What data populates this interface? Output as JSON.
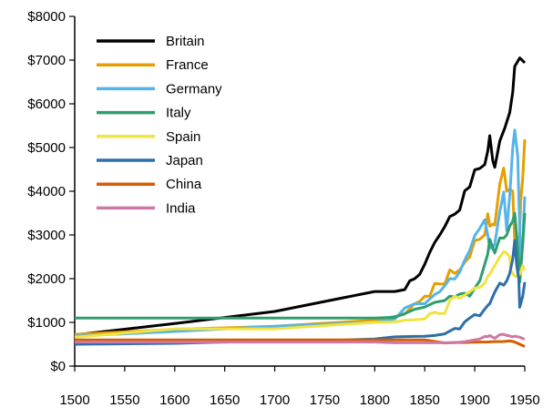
{
  "chart_data": {
    "type": "line",
    "title": "",
    "xlabel": "",
    "ylabel": "",
    "xlim": [
      1500,
      1950
    ],
    "ylim": [
      0,
      8000
    ],
    "x_ticks": [
      "1500",
      "1550",
      "1600",
      "1650",
      "1700",
      "1750",
      "1800",
      "1850",
      "1900",
      "1950"
    ],
    "y_ticks": [
      "$0",
      "$1000",
      "$2000",
      "$3000",
      "$4000",
      "$5000",
      "$6000",
      "$7000",
      "$8000"
    ],
    "legend_position": "top-left",
    "series": [
      {
        "name": "Britain",
        "color": "#000000",
        "points": [
          [
            1500,
            714
          ],
          [
            1600,
            974
          ],
          [
            1700,
            1250
          ],
          [
            1800,
            1706
          ],
          [
            1820,
            1706
          ],
          [
            1830,
            1749
          ],
          [
            1835,
            1950
          ],
          [
            1840,
            2000
          ],
          [
            1845,
            2100
          ],
          [
            1850,
            2330
          ],
          [
            1855,
            2600
          ],
          [
            1860,
            2830
          ],
          [
            1865,
            3000
          ],
          [
            1870,
            3190
          ],
          [
            1875,
            3420
          ],
          [
            1880,
            3477
          ],
          [
            1885,
            3570
          ],
          [
            1890,
            4009
          ],
          [
            1895,
            4100
          ],
          [
            1900,
            4492
          ],
          [
            1905,
            4520
          ],
          [
            1910,
            4611
          ],
          [
            1913,
            4921
          ],
          [
            1915,
            5270
          ],
          [
            1918,
            4700
          ],
          [
            1920,
            4548
          ],
          [
            1925,
            5150
          ],
          [
            1930,
            5441
          ],
          [
            1935,
            5800
          ],
          [
            1938,
            6266
          ],
          [
            1940,
            6856
          ],
          [
            1945,
            7050
          ],
          [
            1950,
            6939
          ]
        ]
      },
      {
        "name": "France",
        "color": "#E69F00",
        "points": [
          [
            1500,
            727
          ],
          [
            1600,
            841
          ],
          [
            1700,
            910
          ],
          [
            1800,
            1050
          ],
          [
            1820,
            1135
          ],
          [
            1830,
            1191
          ],
          [
            1840,
            1428
          ],
          [
            1845,
            1480
          ],
          [
            1850,
            1597
          ],
          [
            1855,
            1600
          ],
          [
            1860,
            1892
          ],
          [
            1865,
            1880
          ],
          [
            1870,
            1876
          ],
          [
            1875,
            2200
          ],
          [
            1880,
            2120
          ],
          [
            1885,
            2200
          ],
          [
            1890,
            2376
          ],
          [
            1895,
            2500
          ],
          [
            1900,
            2876
          ],
          [
            1905,
            2900
          ],
          [
            1910,
            3000
          ],
          [
            1913,
            3485
          ],
          [
            1915,
            3200
          ],
          [
            1918,
            3250
          ],
          [
            1920,
            3227
          ],
          [
            1925,
            4166
          ],
          [
            1929,
            4532
          ],
          [
            1932,
            4000
          ],
          [
            1935,
            4050
          ],
          [
            1938,
            4000
          ],
          [
            1940,
            2850
          ],
          [
            1942,
            2600
          ],
          [
            1944,
            2400
          ],
          [
            1946,
            3800
          ],
          [
            1948,
            4300
          ],
          [
            1950,
            5186
          ]
        ]
      },
      {
        "name": "Germany",
        "color": "#56B4E9",
        "points": [
          [
            1500,
            688
          ],
          [
            1600,
            791
          ],
          [
            1700,
            910
          ],
          [
            1800,
            1000
          ],
          [
            1820,
            1077
          ],
          [
            1830,
            1328
          ],
          [
            1840,
            1428
          ],
          [
            1850,
            1428
          ],
          [
            1860,
            1639
          ],
          [
            1865,
            1700
          ],
          [
            1870,
            1839
          ],
          [
            1875,
            2000
          ],
          [
            1880,
            1991
          ],
          [
            1885,
            2150
          ],
          [
            1890,
            2428
          ],
          [
            1895,
            2650
          ],
          [
            1900,
            2985
          ],
          [
            1905,
            3150
          ],
          [
            1910,
            3348
          ],
          [
            1913,
            3000
          ],
          [
            1915,
            2700
          ],
          [
            1918,
            2700
          ],
          [
            1920,
            2796
          ],
          [
            1925,
            3532
          ],
          [
            1929,
            3981
          ],
          [
            1932,
            3100
          ],
          [
            1935,
            3900
          ],
          [
            1938,
            4994
          ],
          [
            1940,
            5403
          ],
          [
            1943,
            4800
          ],
          [
            1946,
            2217
          ],
          [
            1948,
            2900
          ],
          [
            1950,
            3881
          ]
        ]
      },
      {
        "name": "Italy",
        "color": "#2E9E6E",
        "points": [
          [
            1500,
            1100
          ],
          [
            1600,
            1100
          ],
          [
            1700,
            1100
          ],
          [
            1800,
            1100
          ],
          [
            1820,
            1117
          ],
          [
            1830,
            1200
          ],
          [
            1840,
            1300
          ],
          [
            1850,
            1350
          ],
          [
            1860,
            1459
          ],
          [
            1870,
            1499
          ],
          [
            1875,
            1600
          ],
          [
            1880,
            1581
          ],
          [
            1885,
            1650
          ],
          [
            1890,
            1667
          ],
          [
            1895,
            1600
          ],
          [
            1900,
            1785
          ],
          [
            1905,
            1950
          ],
          [
            1910,
            2332
          ],
          [
            1913,
            2564
          ],
          [
            1915,
            2900
          ],
          [
            1918,
            2700
          ],
          [
            1920,
            2587
          ],
          [
            1925,
            2933
          ],
          [
            1929,
            2927
          ],
          [
            1932,
            3000
          ],
          [
            1935,
            3200
          ],
          [
            1938,
            3316
          ],
          [
            1940,
            3500
          ],
          [
            1943,
            2700
          ],
          [
            1945,
            1922
          ],
          [
            1948,
            2800
          ],
          [
            1950,
            3502
          ]
        ]
      },
      {
        "name": "Spain",
        "color": "#F0E442",
        "points": [
          [
            1500,
            661
          ],
          [
            1600,
            853
          ],
          [
            1700,
            853
          ],
          [
            1800,
            1000
          ],
          [
            1820,
            1008
          ],
          [
            1830,
            1050
          ],
          [
            1840,
            1060
          ],
          [
            1850,
            1079
          ],
          [
            1855,
            1200
          ],
          [
            1860,
            1230
          ],
          [
            1865,
            1200
          ],
          [
            1870,
            1207
          ],
          [
            1875,
            1500
          ],
          [
            1880,
            1600
          ],
          [
            1885,
            1550
          ],
          [
            1890,
            1624
          ],
          [
            1895,
            1700
          ],
          [
            1900,
            1786
          ],
          [
            1905,
            1800
          ],
          [
            1910,
            1895
          ],
          [
            1913,
            2056
          ],
          [
            1915,
            2100
          ],
          [
            1920,
            2300
          ],
          [
            1925,
            2500
          ],
          [
            1929,
            2620
          ],
          [
            1932,
            2580
          ],
          [
            1935,
            2500
          ],
          [
            1936,
            2200
          ],
          [
            1939,
            2080
          ],
          [
            1941,
            2050
          ],
          [
            1945,
            2100
          ],
          [
            1948,
            2300
          ],
          [
            1950,
            2189
          ]
        ]
      },
      {
        "name": "Japan",
        "color": "#2F6EA8",
        "points": [
          [
            1500,
            500
          ],
          [
            1600,
            520
          ],
          [
            1650,
            550
          ],
          [
            1700,
            570
          ],
          [
            1750,
            580
          ],
          [
            1800,
            620
          ],
          [
            1820,
            669
          ],
          [
            1840,
            680
          ],
          [
            1850,
            681
          ],
          [
            1860,
            700
          ],
          [
            1870,
            737
          ],
          [
            1875,
            800
          ],
          [
            1880,
            863
          ],
          [
            1885,
            850
          ],
          [
            1890,
            1012
          ],
          [
            1895,
            1100
          ],
          [
            1900,
            1180
          ],
          [
            1905,
            1150
          ],
          [
            1910,
            1304
          ],
          [
            1913,
            1387
          ],
          [
            1915,
            1430
          ],
          [
            1920,
            1696
          ],
          [
            1925,
            1900
          ],
          [
            1929,
            1850
          ],
          [
            1932,
            1950
          ],
          [
            1935,
            2120
          ],
          [
            1938,
            2449
          ],
          [
            1940,
            2874
          ],
          [
            1942,
            2300
          ],
          [
            1944,
            2000
          ],
          [
            1945,
            1346
          ],
          [
            1948,
            1600
          ],
          [
            1950,
            1921
          ]
        ]
      },
      {
        "name": "China",
        "color": "#D55E00",
        "points": [
          [
            1500,
            600
          ],
          [
            1600,
            600
          ],
          [
            1700,
            600
          ],
          [
            1800,
            600
          ],
          [
            1820,
            600
          ],
          [
            1850,
            600
          ],
          [
            1870,
            530
          ],
          [
            1880,
            540
          ],
          [
            1890,
            540
          ],
          [
            1900,
            545
          ],
          [
            1913,
            552
          ],
          [
            1920,
            560
          ],
          [
            1929,
            562
          ],
          [
            1935,
            575
          ],
          [
            1938,
            562
          ],
          [
            1940,
            550
          ],
          [
            1945,
            500
          ],
          [
            1950,
            448
          ]
        ]
      },
      {
        "name": "India",
        "color": "#CC79A7",
        "points": [
          [
            1500,
            550
          ],
          [
            1600,
            550
          ],
          [
            1700,
            550
          ],
          [
            1800,
            550
          ],
          [
            1820,
            533
          ],
          [
            1850,
            533
          ],
          [
            1870,
            533
          ],
          [
            1880,
            535
          ],
          [
            1890,
            560
          ],
          [
            1900,
            599
          ],
          [
            1905,
            620
          ],
          [
            1910,
            680
          ],
          [
            1913,
            673
          ],
          [
            1915,
            700
          ],
          [
            1920,
            635
          ],
          [
            1925,
            720
          ],
          [
            1929,
            728
          ],
          [
            1932,
            700
          ],
          [
            1935,
            690
          ],
          [
            1938,
            668
          ],
          [
            1940,
            686
          ],
          [
            1945,
            660
          ],
          [
            1948,
            630
          ],
          [
            1950,
            619
          ]
        ]
      }
    ]
  }
}
